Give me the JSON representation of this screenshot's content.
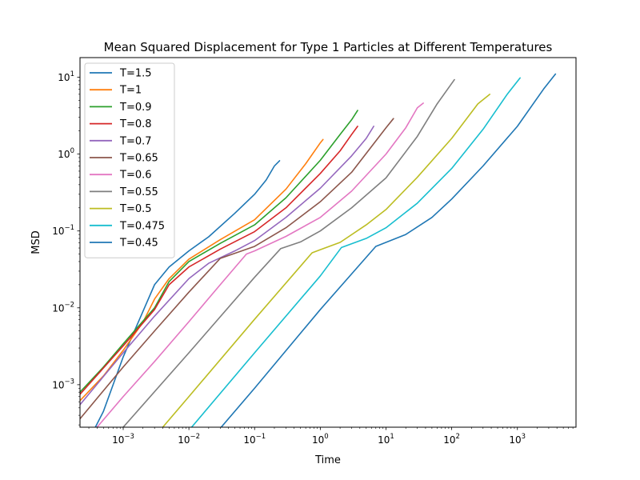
{
  "chart_data": {
    "type": "line",
    "title": "Mean Squared Displacement for Type 1 Particles at Different Temperatures",
    "xlabel": "Time",
    "ylabel": "MSD",
    "xscale": "log",
    "yscale": "log",
    "xlim": [
      0.00022,
      7800
    ],
    "ylim": [
      0.00028,
      18
    ],
    "x_ticks": [
      {
        "value": 0.001,
        "base": "10",
        "exp": "−3"
      },
      {
        "value": 0.01,
        "base": "10",
        "exp": "−2"
      },
      {
        "value": 0.1,
        "base": "10",
        "exp": "−1"
      },
      {
        "value": 1,
        "base": "10",
        "exp": "0"
      },
      {
        "value": 10,
        "base": "10",
        "exp": "1"
      },
      {
        "value": 100,
        "base": "10",
        "exp": "2"
      },
      {
        "value": 1000,
        "base": "10",
        "exp": "3"
      }
    ],
    "y_ticks": [
      {
        "value": 0.001,
        "base": "10",
        "exp": "−3"
      },
      {
        "value": 0.01,
        "base": "10",
        "exp": "−2"
      },
      {
        "value": 0.1,
        "base": "10",
        "exp": "−1"
      },
      {
        "value": 1,
        "base": "10",
        "exp": "0"
      },
      {
        "value": 10,
        "base": "10",
        "exp": "1"
      }
    ],
    "legend_position": "upper left",
    "grid": false,
    "series": [
      {
        "name": "T=1.5",
        "color": "#1f77b4",
        "points": [
          [
            0.00028,
            0.00017
          ],
          [
            0.0005,
            0.00045
          ],
          [
            0.001,
            0.0023
          ],
          [
            0.002,
            0.009
          ],
          [
            0.003,
            0.02
          ],
          [
            0.005,
            0.034
          ],
          [
            0.01,
            0.055
          ],
          [
            0.02,
            0.084
          ],
          [
            0.05,
            0.17
          ],
          [
            0.1,
            0.3
          ],
          [
            0.15,
            0.46
          ],
          [
            0.2,
            0.7
          ],
          [
            0.24,
            0.82
          ]
        ]
      },
      {
        "name": "T=1",
        "color": "#ff7f0e",
        "points": [
          [
            0.00022,
            0.00062
          ],
          [
            0.0005,
            0.0013
          ],
          [
            0.001,
            0.0028
          ],
          [
            0.002,
            0.0065
          ],
          [
            0.003,
            0.013
          ],
          [
            0.005,
            0.024
          ],
          [
            0.01,
            0.043
          ],
          [
            0.03,
            0.077
          ],
          [
            0.1,
            0.14
          ],
          [
            0.3,
            0.35
          ],
          [
            0.6,
            0.75
          ],
          [
            1.0,
            1.4
          ],
          [
            1.1,
            1.55
          ]
        ]
      },
      {
        "name": "T=0.9",
        "color": "#2ca02c",
        "points": [
          [
            0.00022,
            0.0008
          ],
          [
            0.0005,
            0.0017
          ],
          [
            0.001,
            0.0034
          ],
          [
            0.003,
            0.01
          ],
          [
            0.005,
            0.022
          ],
          [
            0.01,
            0.04
          ],
          [
            0.03,
            0.069
          ],
          [
            0.1,
            0.12
          ],
          [
            0.3,
            0.27
          ],
          [
            1.0,
            0.83
          ],
          [
            2.0,
            1.8
          ],
          [
            3.0,
            2.8
          ],
          [
            3.7,
            3.7
          ]
        ]
      },
      {
        "name": "T=0.8",
        "color": "#d62728",
        "points": [
          [
            0.00022,
            0.00075
          ],
          [
            0.001,
            0.0032
          ],
          [
            0.003,
            0.0095
          ],
          [
            0.005,
            0.02
          ],
          [
            0.01,
            0.034
          ],
          [
            0.03,
            0.058
          ],
          [
            0.1,
            0.098
          ],
          [
            0.3,
            0.2
          ],
          [
            1.0,
            0.56
          ],
          [
            2.0,
            1.1
          ],
          [
            3.0,
            1.8
          ],
          [
            3.7,
            2.3
          ]
        ]
      },
      {
        "name": "T=0.7",
        "color": "#9467bd",
        "points": [
          [
            0.00022,
            0.00055
          ],
          [
            0.001,
            0.0026
          ],
          [
            0.003,
            0.0078
          ],
          [
            0.01,
            0.024
          ],
          [
            0.02,
            0.038
          ],
          [
            0.05,
            0.055
          ],
          [
            0.1,
            0.075
          ],
          [
            0.3,
            0.15
          ],
          [
            1.0,
            0.36
          ],
          [
            3.0,
            0.95
          ],
          [
            5.0,
            1.6
          ],
          [
            6.5,
            2.3
          ]
        ]
      },
      {
        "name": "T=0.65",
        "color": "#8c564b",
        "points": [
          [
            0.00022,
            0.00036
          ],
          [
            0.001,
            0.0017
          ],
          [
            0.003,
            0.005
          ],
          [
            0.01,
            0.016
          ],
          [
            0.03,
            0.044
          ],
          [
            0.1,
            0.063
          ],
          [
            0.3,
            0.11
          ],
          [
            1.0,
            0.24
          ],
          [
            3.0,
            0.58
          ],
          [
            10.0,
            2.2
          ],
          [
            13.0,
            2.9
          ]
        ]
      },
      {
        "name": "T=0.6",
        "color": "#e377c2",
        "points": [
          [
            0.0004,
            0.00028
          ],
          [
            0.001,
            0.0007
          ],
          [
            0.003,
            0.002
          ],
          [
            0.01,
            0.0066
          ],
          [
            0.03,
            0.02
          ],
          [
            0.075,
            0.05
          ],
          [
            0.1,
            0.055
          ],
          [
            0.3,
            0.085
          ],
          [
            1.0,
            0.15
          ],
          [
            3.0,
            0.33
          ],
          [
            10.0,
            1.0
          ],
          [
            20.0,
            2.2
          ],
          [
            30.0,
            4.0
          ],
          [
            37.0,
            4.6
          ]
        ]
      },
      {
        "name": "T=0.55",
        "color": "#7f7f7f",
        "points": [
          [
            0.001,
            0.00028
          ],
          [
            0.01,
            0.0026
          ],
          [
            0.1,
            0.025
          ],
          [
            0.25,
            0.059
          ],
          [
            0.5,
            0.072
          ],
          [
            1.0,
            0.1
          ],
          [
            3.0,
            0.2
          ],
          [
            10.0,
            0.49
          ],
          [
            30.0,
            1.7
          ],
          [
            60.0,
            4.5
          ],
          [
            110.0,
            9.3
          ]
        ]
      },
      {
        "name": "T=0.5",
        "color": "#bcbd22",
        "points": [
          [
            0.004,
            0.00028
          ],
          [
            0.01,
            0.0007
          ],
          [
            0.1,
            0.0071
          ],
          [
            0.75,
            0.052
          ],
          [
            1.0,
            0.057
          ],
          [
            2.0,
            0.071
          ],
          [
            5.0,
            0.12
          ],
          [
            10.0,
            0.19
          ],
          [
            30.0,
            0.5
          ],
          [
            100.0,
            1.6
          ],
          [
            250.0,
            4.5
          ],
          [
            380.0,
            6.0
          ]
        ]
      },
      {
        "name": "T=0.475",
        "color": "#17becf",
        "points": [
          [
            0.011,
            0.00028
          ],
          [
            0.1,
            0.0026
          ],
          [
            1.0,
            0.026
          ],
          [
            2.1,
            0.061
          ],
          [
            5.0,
            0.08
          ],
          [
            10.0,
            0.11
          ],
          [
            30.0,
            0.23
          ],
          [
            100.0,
            0.65
          ],
          [
            300.0,
            2.1
          ],
          [
            700.0,
            6.0
          ],
          [
            1100.0,
            9.8
          ]
        ]
      },
      {
        "name": "T=0.45",
        "color": "#1f77b4",
        "points": [
          [
            0.031,
            0.00028
          ],
          [
            0.1,
            0.0009
          ],
          [
            1.0,
            0.0095
          ],
          [
            7.0,
            0.063
          ],
          [
            20.0,
            0.09
          ],
          [
            50.0,
            0.15
          ],
          [
            100.0,
            0.26
          ],
          [
            300.0,
            0.7
          ],
          [
            1000.0,
            2.3
          ],
          [
            2500.0,
            7.0
          ],
          [
            3800.0,
            11.0
          ]
        ]
      }
    ]
  }
}
